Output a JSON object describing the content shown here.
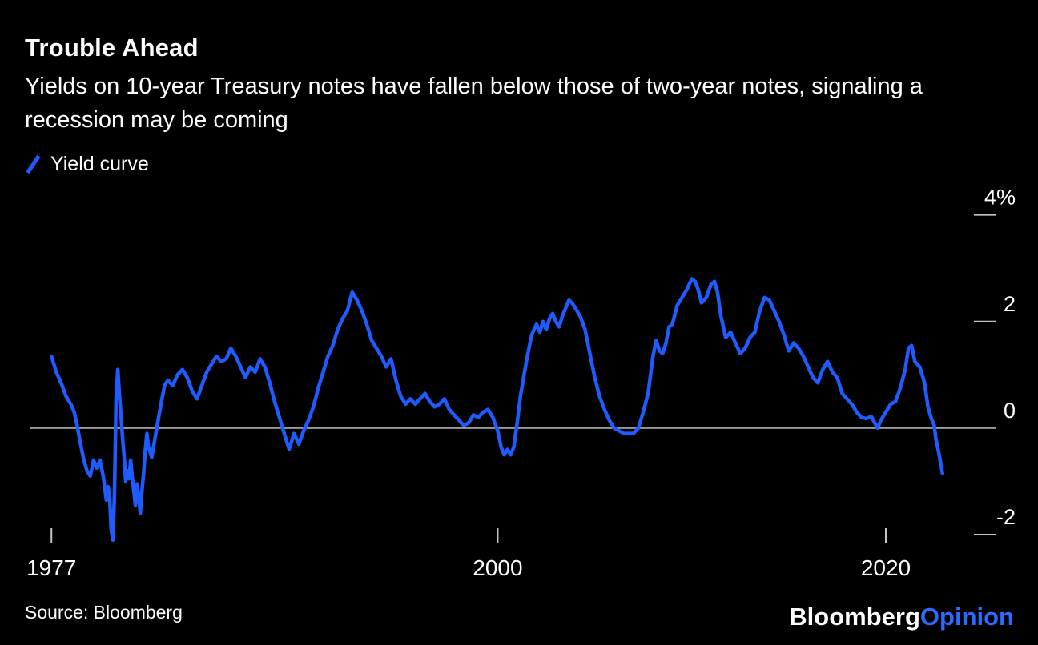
{
  "header": {
    "title": "Trouble Ahead",
    "subtitle": "Yields on 10-year Treasury notes have fallen below those of two-year notes, signaling a recession may be coming"
  },
  "legend": {
    "label": "Yield curve"
  },
  "colors": {
    "background": "#000000",
    "text": "#ffffff",
    "line": "#1e5cff",
    "zero_line": "#9b9b9b",
    "tick": "#c4c4c4",
    "logo_opinion": "#2d6bff"
  },
  "footer": {
    "source": "Source: Bloomberg",
    "logo": {
      "part1": "Bloomberg",
      "part2": "Opinion"
    }
  },
  "chart_data": {
    "type": "line",
    "title": "Trouble Ahead",
    "series_name": "Yield curve",
    "unit": "%",
    "xlim": [
      1976,
      2024.5
    ],
    "ylim": [
      -2.6,
      4.4
    ],
    "zero_line": true,
    "grid": false,
    "legend_position": "top-left",
    "yticks": [
      {
        "value": 4,
        "label": "4%"
      },
      {
        "value": 2,
        "label": "2"
      },
      {
        "value": 0,
        "label": "0"
      },
      {
        "value": -2,
        "label": "-2"
      }
    ],
    "xticks": [
      {
        "value": 1977,
        "label": "1977"
      },
      {
        "value": 2000,
        "label": "2000"
      },
      {
        "value": 2020,
        "label": "2020"
      }
    ],
    "points": [
      [
        1977,
        1.35
      ],
      [
        1977.25,
        1.05
      ],
      [
        1977.5,
        0.85
      ],
      [
        1977.75,
        0.6
      ],
      [
        1978,
        0.45
      ],
      [
        1978.17,
        0.3
      ],
      [
        1978.33,
        0.05
      ],
      [
        1978.5,
        -0.3
      ],
      [
        1978.67,
        -0.6
      ],
      [
        1978.83,
        -0.8
      ],
      [
        1979,
        -0.9
      ],
      [
        1979.17,
        -0.6
      ],
      [
        1979.33,
        -0.75
      ],
      [
        1979.5,
        -0.6
      ],
      [
        1979.67,
        -0.9
      ],
      [
        1979.83,
        -1.35
      ],
      [
        1979.92,
        -1.1
      ],
      [
        1980,
        -1.3
      ],
      [
        1980.08,
        -1.9
      ],
      [
        1980.17,
        -2.1
      ],
      [
        1980.25,
        -1.2
      ],
      [
        1980.33,
        0.55
      ],
      [
        1980.42,
        1.1
      ],
      [
        1980.5,
        0.65
      ],
      [
        1980.58,
        0.25
      ],
      [
        1980.67,
        -0.2
      ],
      [
        1980.75,
        -0.55
      ],
      [
        1980.83,
        -1.0
      ],
      [
        1980.92,
        -0.8
      ],
      [
        1981,
        -0.95
      ],
      [
        1981.08,
        -0.6
      ],
      [
        1981.17,
        -0.95
      ],
      [
        1981.33,
        -1.45
      ],
      [
        1981.42,
        -1.05
      ],
      [
        1981.5,
        -1.3
      ],
      [
        1981.58,
        -1.6
      ],
      [
        1981.67,
        -1.15
      ],
      [
        1981.75,
        -0.85
      ],
      [
        1981.83,
        -0.45
      ],
      [
        1981.92,
        -0.1
      ],
      [
        1982,
        -0.35
      ],
      [
        1982.17,
        -0.55
      ],
      [
        1982.33,
        -0.2
      ],
      [
        1982.5,
        0.15
      ],
      [
        1982.67,
        0.5
      ],
      [
        1982.83,
        0.8
      ],
      [
        1983,
        0.9
      ],
      [
        1983.25,
        0.8
      ],
      [
        1983.5,
        1.0
      ],
      [
        1983.75,
        1.1
      ],
      [
        1984,
        0.95
      ],
      [
        1984.25,
        0.7
      ],
      [
        1984.5,
        0.55
      ],
      [
        1984.75,
        0.8
      ],
      [
        1985,
        1.05
      ],
      [
        1985.25,
        1.2
      ],
      [
        1985.5,
        1.35
      ],
      [
        1985.75,
        1.25
      ],
      [
        1986,
        1.3
      ],
      [
        1986.25,
        1.5
      ],
      [
        1986.5,
        1.35
      ],
      [
        1986.75,
        1.15
      ],
      [
        1987,
        0.95
      ],
      [
        1987.25,
        1.15
      ],
      [
        1987.5,
        1.05
      ],
      [
        1987.75,
        1.3
      ],
      [
        1988,
        1.15
      ],
      [
        1988.25,
        0.85
      ],
      [
        1988.5,
        0.5
      ],
      [
        1988.75,
        0.2
      ],
      [
        1989,
        -0.1
      ],
      [
        1989.25,
        -0.4
      ],
      [
        1989.5,
        -0.1
      ],
      [
        1989.75,
        -0.3
      ],
      [
        1990,
        -0.05
      ],
      [
        1990.25,
        0.15
      ],
      [
        1990.5,
        0.4
      ],
      [
        1990.75,
        0.75
      ],
      [
        1991,
        1.05
      ],
      [
        1991.25,
        1.35
      ],
      [
        1991.5,
        1.55
      ],
      [
        1991.75,
        1.85
      ],
      [
        1992,
        2.05
      ],
      [
        1992.25,
        2.2
      ],
      [
        1992.5,
        2.55
      ],
      [
        1992.75,
        2.4
      ],
      [
        1993,
        2.2
      ],
      [
        1993.25,
        1.95
      ],
      [
        1993.5,
        1.65
      ],
      [
        1993.75,
        1.5
      ],
      [
        1994,
        1.35
      ],
      [
        1994.25,
        1.15
      ],
      [
        1994.5,
        1.3
      ],
      [
        1994.75,
        0.9
      ],
      [
        1995,
        0.6
      ],
      [
        1995.25,
        0.45
      ],
      [
        1995.5,
        0.55
      ],
      [
        1995.75,
        0.45
      ],
      [
        1996,
        0.55
      ],
      [
        1996.25,
        0.65
      ],
      [
        1996.5,
        0.5
      ],
      [
        1996.75,
        0.4
      ],
      [
        1997,
        0.45
      ],
      [
        1997.25,
        0.55
      ],
      [
        1997.5,
        0.35
      ],
      [
        1997.75,
        0.25
      ],
      [
        1998,
        0.15
      ],
      [
        1998.25,
        0.05
      ],
      [
        1998.5,
        0.1
      ],
      [
        1998.75,
        0.25
      ],
      [
        1999,
        0.2
      ],
      [
        1999.25,
        0.3
      ],
      [
        1999.5,
        0.35
      ],
      [
        1999.75,
        0.2
      ],
      [
        2000,
        -0.05
      ],
      [
        2000.17,
        -0.35
      ],
      [
        2000.33,
        -0.5
      ],
      [
        2000.5,
        -0.4
      ],
      [
        2000.67,
        -0.5
      ],
      [
        2000.83,
        -0.35
      ],
      [
        2001,
        0.1
      ],
      [
        2001.17,
        0.6
      ],
      [
        2001.33,
        0.95
      ],
      [
        2001.5,
        1.3
      ],
      [
        2001.75,
        1.75
      ],
      [
        2002,
        1.95
      ],
      [
        2002.17,
        1.8
      ],
      [
        2002.33,
        2.0
      ],
      [
        2002.5,
        1.85
      ],
      [
        2002.67,
        2.05
      ],
      [
        2002.83,
        2.15
      ],
      [
        2003,
        2.0
      ],
      [
        2003.17,
        1.9
      ],
      [
        2003.33,
        2.1
      ],
      [
        2003.5,
        2.25
      ],
      [
        2003.67,
        2.4
      ],
      [
        2003.83,
        2.35
      ],
      [
        2004,
        2.25
      ],
      [
        2004.25,
        2.1
      ],
      [
        2004.5,
        1.85
      ],
      [
        2004.75,
        1.4
      ],
      [
        2005,
        0.95
      ],
      [
        2005.25,
        0.6
      ],
      [
        2005.5,
        0.35
      ],
      [
        2005.75,
        0.15
      ],
      [
        2006,
        0.0
      ],
      [
        2006.25,
        -0.05
      ],
      [
        2006.5,
        -0.1
      ],
      [
        2006.75,
        -0.1
      ],
      [
        2007,
        -0.1
      ],
      [
        2007.25,
        0.0
      ],
      [
        2007.5,
        0.3
      ],
      [
        2007.75,
        0.65
      ],
      [
        2008,
        1.35
      ],
      [
        2008.17,
        1.65
      ],
      [
        2008.33,
        1.45
      ],
      [
        2008.5,
        1.4
      ],
      [
        2008.67,
        1.6
      ],
      [
        2008.83,
        1.9
      ],
      [
        2009,
        1.95
      ],
      [
        2009.25,
        2.3
      ],
      [
        2009.5,
        2.45
      ],
      [
        2009.75,
        2.6
      ],
      [
        2010,
        2.8
      ],
      [
        2010.17,
        2.75
      ],
      [
        2010.33,
        2.6
      ],
      [
        2010.5,
        2.35
      ],
      [
        2010.75,
        2.45
      ],
      [
        2011,
        2.7
      ],
      [
        2011.17,
        2.75
      ],
      [
        2011.33,
        2.55
      ],
      [
        2011.5,
        2.1
      ],
      [
        2011.75,
        1.7
      ],
      [
        2012,
        1.8
      ],
      [
        2012.25,
        1.6
      ],
      [
        2012.5,
        1.4
      ],
      [
        2012.75,
        1.5
      ],
      [
        2013,
        1.7
      ],
      [
        2013.25,
        1.8
      ],
      [
        2013.5,
        2.2
      ],
      [
        2013.75,
        2.45
      ],
      [
        2014,
        2.4
      ],
      [
        2014.25,
        2.2
      ],
      [
        2014.5,
        2.0
      ],
      [
        2014.75,
        1.75
      ],
      [
        2015,
        1.45
      ],
      [
        2015.25,
        1.6
      ],
      [
        2015.5,
        1.5
      ],
      [
        2015.75,
        1.35
      ],
      [
        2016,
        1.15
      ],
      [
        2016.25,
        0.95
      ],
      [
        2016.5,
        0.85
      ],
      [
        2016.75,
        1.1
      ],
      [
        2017,
        1.25
      ],
      [
        2017.25,
        1.05
      ],
      [
        2017.5,
        0.95
      ],
      [
        2017.75,
        0.65
      ],
      [
        2018,
        0.55
      ],
      [
        2018.25,
        0.45
      ],
      [
        2018.5,
        0.3
      ],
      [
        2018.75,
        0.2
      ],
      [
        2019,
        0.18
      ],
      [
        2019.25,
        0.22
      ],
      [
        2019.5,
        0.05
      ],
      [
        2019.58,
        0.0
      ],
      [
        2019.75,
        0.15
      ],
      [
        2020,
        0.3
      ],
      [
        2020.25,
        0.45
      ],
      [
        2020.5,
        0.5
      ],
      [
        2020.75,
        0.75
      ],
      [
        2021,
        1.1
      ],
      [
        2021.17,
        1.5
      ],
      [
        2021.33,
        1.55
      ],
      [
        2021.5,
        1.25
      ],
      [
        2021.75,
        1.15
      ],
      [
        2022,
        0.85
      ],
      [
        2022.17,
        0.4
      ],
      [
        2022.33,
        0.2
      ],
      [
        2022.5,
        0.05
      ],
      [
        2022.58,
        -0.2
      ],
      [
        2022.75,
        -0.5
      ],
      [
        2022.92,
        -0.85
      ]
    ]
  }
}
